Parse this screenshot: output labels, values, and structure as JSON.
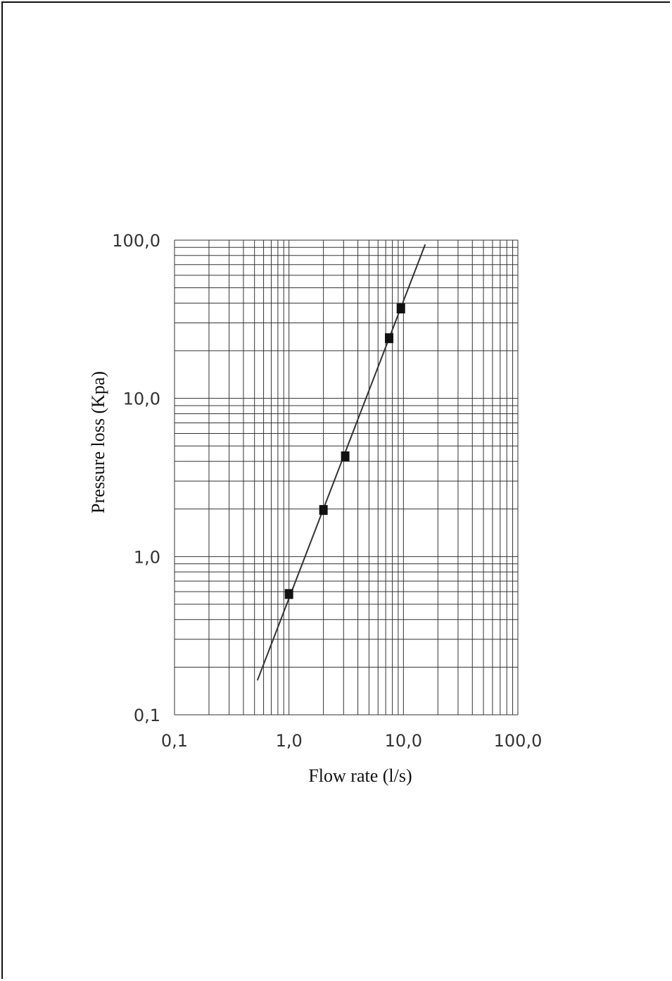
{
  "chart_data": {
    "type": "scatter",
    "title": "",
    "xlabel": "Flow rate (l/s)",
    "ylabel": "Pressure loss (Kpa)",
    "x_scale": "log",
    "y_scale": "log",
    "xlim": [
      0.1,
      100
    ],
    "ylim": [
      0.1,
      100
    ],
    "x_ticks": [
      0.1,
      1,
      10,
      100
    ],
    "y_ticks": [
      0.1,
      1,
      10,
      100
    ],
    "x_tick_labels": [
      "0,1",
      "1,0",
      "10,0",
      "100,0"
    ],
    "y_tick_labels": [
      "0,1",
      "1,0",
      "10,0",
      "100,0"
    ],
    "grid": true,
    "series": [
      {
        "type": "scatter",
        "marker": "square",
        "x": [
          1.0,
          2.0,
          3.1,
          7.5,
          9.5
        ],
        "y": [
          0.58,
          1.97,
          4.3,
          24,
          37
        ]
      },
      {
        "type": "line",
        "x": [
          0.53,
          15.5
        ],
        "y": [
          0.165,
          94
        ]
      }
    ],
    "colors": {
      "ink": "#111111",
      "grid": "#333333"
    }
  }
}
